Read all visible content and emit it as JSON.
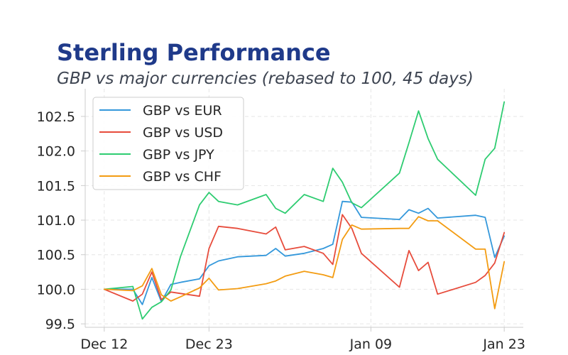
{
  "chart_data": {
    "type": "line",
    "title": "Sterling Performance",
    "subtitle": "GBP vs major currencies (rebased to 100, 45 days)",
    "xlabel": "",
    "ylabel": "",
    "x_start": "2023-12-12",
    "x_ticks": [
      {
        "date": "2023-12-12",
        "label": "Dec 12"
      },
      {
        "date": "2023-12-23",
        "label": "Dec 23"
      },
      {
        "date": "2024-01-09",
        "label": "Jan 09"
      },
      {
        "date": "2024-01-23",
        "label": "Jan 23"
      }
    ],
    "y_ticks": [
      99.5,
      100.0,
      100.5,
      101.0,
      101.5,
      102.0,
      102.5
    ],
    "xlim": [
      "2023-12-10",
      "2024-01-25"
    ],
    "ylim": [
      99.45,
      102.9
    ],
    "grid": true,
    "legend_position": "top-left",
    "dates": [
      "2023-12-12",
      "2023-12-15",
      "2023-12-16",
      "2023-12-17",
      "2023-12-18",
      "2023-12-19",
      "2023-12-20",
      "2023-12-22",
      "2023-12-23",
      "2023-12-24",
      "2023-12-26",
      "2023-12-29",
      "2023-12-30",
      "2023-12-31",
      "2024-01-02",
      "2024-01-04",
      "2024-01-05",
      "2024-01-06",
      "2024-01-07",
      "2024-01-08",
      "2024-01-12",
      "2024-01-13",
      "2024-01-14",
      "2024-01-15",
      "2024-01-16",
      "2024-01-20",
      "2024-01-21",
      "2024-01-22",
      "2024-01-23"
    ],
    "series": [
      {
        "name": "GBP vs EUR",
        "color": "#3498db",
        "values": [
          100.0,
          100.0,
          99.78,
          100.17,
          99.82,
          100.07,
          100.1,
          100.15,
          100.34,
          100.41,
          100.47,
          100.49,
          100.59,
          100.48,
          100.52,
          100.59,
          100.65,
          101.27,
          101.26,
          101.04,
          101.01,
          101.15,
          101.1,
          101.17,
          101.03,
          101.07,
          101.04,
          100.46,
          100.77
        ]
      },
      {
        "name": "GBP vs USD",
        "color": "#e74c3c",
        "values": [
          100.0,
          99.83,
          99.93,
          100.25,
          99.85,
          99.96,
          99.94,
          99.9,
          100.59,
          100.91,
          100.88,
          100.8,
          100.9,
          100.57,
          100.62,
          100.52,
          100.36,
          101.08,
          100.88,
          100.52,
          100.03,
          100.56,
          100.27,
          100.39,
          99.93,
          100.1,
          100.2,
          100.38,
          100.82
        ]
      },
      {
        "name": "GBP vs JPY",
        "color": "#2ecc71",
        "values": [
          100.0,
          100.04,
          99.57,
          99.74,
          99.82,
          99.99,
          100.47,
          101.22,
          101.4,
          101.27,
          101.22,
          101.37,
          101.17,
          101.1,
          101.37,
          101.27,
          101.75,
          101.55,
          101.25,
          101.18,
          101.68,
          102.12,
          102.58,
          102.18,
          101.88,
          101.36,
          101.88,
          102.04,
          102.71
        ]
      },
      {
        "name": "GBP vs CHF",
        "color": "#f39c12",
        "values": [
          100.0,
          99.98,
          100.05,
          100.3,
          99.92,
          99.83,
          99.89,
          100.02,
          100.16,
          99.99,
          100.01,
          100.08,
          100.12,
          100.19,
          100.26,
          100.21,
          100.17,
          100.72,
          100.93,
          100.87,
          100.88,
          100.88,
          101.05,
          100.99,
          100.99,
          100.58,
          100.58,
          99.72,
          100.4
        ]
      }
    ]
  }
}
